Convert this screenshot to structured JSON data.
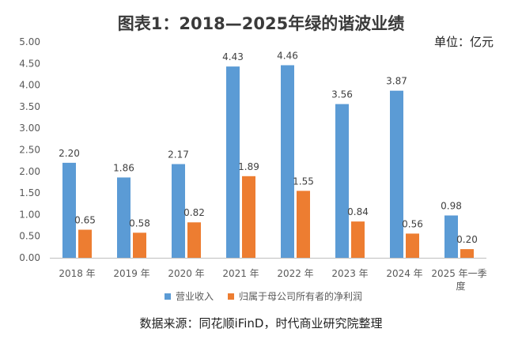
{
  "chart_data": {
    "type": "bar",
    "title": "图表1：2018—2025年绿的谐波业绩",
    "unit": "单位：亿元",
    "categories": [
      "2018 年",
      "2019 年",
      "2020 年",
      "2021 年",
      "2022 年",
      "2023 年",
      "2024 年",
      "2025 年一季度"
    ],
    "series": [
      {
        "name": "营业收入",
        "color": "#5B9BD5",
        "values": [
          2.2,
          1.86,
          2.17,
          4.43,
          4.46,
          3.56,
          3.87,
          0.98
        ],
        "labels": [
          "2.20",
          "1.86",
          "2.17",
          "4.43",
          "4.46",
          "3.56",
          "3.87",
          "0.98"
        ]
      },
      {
        "name": "归属于母公司所有者的净利润",
        "color": "#ED7D31",
        "values": [
          0.65,
          0.58,
          0.82,
          1.89,
          1.55,
          0.84,
          0.56,
          0.2
        ],
        "labels": [
          "0.65",
          "0.58",
          "0.82",
          "1.89",
          "1.55",
          "0.84",
          "0.56",
          "0.20"
        ]
      }
    ],
    "ylim": [
      0,
      5
    ],
    "yticks": [
      "0.00",
      "0.50",
      "1.00",
      "1.50",
      "2.00",
      "2.50",
      "3.00",
      "3.50",
      "4.00",
      "4.50",
      "5.00"
    ],
    "grid": false,
    "legend_position": "bottom",
    "source": "数据来源：同花顺iFinD，时代商业研究院整理"
  }
}
